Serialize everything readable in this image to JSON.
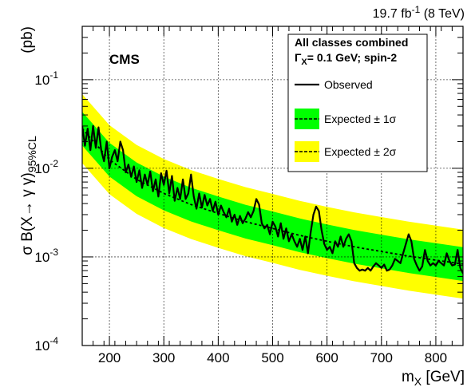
{
  "header": {
    "lumi_value": "19.7 fb",
    "lumi_exp": "-1",
    "lumi_energy": " (8 TeV)",
    "experiment": "CMS"
  },
  "legend": {
    "title_line1": "All classes combined",
    "title_line2_symbol": "Γ",
    "title_line2_sub": "X",
    "title_line2_rest": "= 0.1 GeV; spin-2",
    "observed": "Observed",
    "expected_1s": "Expected ± 1σ",
    "expected_2s": "Expected ± 2σ"
  },
  "axes": {
    "xlabel_main": "m",
    "xlabel_sub": "X",
    "xlabel_unit": " [GeV]",
    "ylabel_pre": "σ B(X→ γ γ)",
    "ylabel_sub": "95%CL",
    "ylabel_unit": "(pb)",
    "x_ticks": [
      "200",
      "300",
      "400",
      "500",
      "600",
      "700",
      "800"
    ],
    "y_ticks": [
      {
        "base": "10",
        "exp": "-4"
      },
      {
        "base": "10",
        "exp": "-3"
      },
      {
        "base": "10",
        "exp": "-2"
      },
      {
        "base": "10",
        "exp": "-1"
      }
    ]
  },
  "colors": {
    "band_1sigma": "#00ff00",
    "band_2sigma": "#ffff00",
    "observed": "#000000",
    "expected": "#000000"
  },
  "chart_data": {
    "type": "line",
    "xlabel": "m_X [GeV]",
    "ylabel": "σ B(X→ γ γ)_95%CL (pb)",
    "xlim": [
      150,
      850
    ],
    "ylim": [
      0.0001,
      0.4
    ],
    "yscale": "log",
    "grid": true,
    "legend_position": "top-right",
    "expected": {
      "x": [
        150,
        200,
        250,
        300,
        350,
        400,
        450,
        500,
        550,
        600,
        650,
        700,
        750,
        800,
        850
      ],
      "median": [
        0.028,
        0.0125,
        0.0075,
        0.0052,
        0.0039,
        0.0031,
        0.0025,
        0.0021,
        0.00175,
        0.0015,
        0.0013,
        0.00115,
        0.00102,
        0.00092,
        0.00083
      ],
      "band_1sigma_factor": 1.55,
      "band_2sigma_factor": 2.45
    },
    "series": [
      {
        "name": "Observed",
        "x": [
          150,
          155,
          160,
          165,
          170,
          175,
          180,
          185,
          190,
          195,
          200,
          205,
          210,
          215,
          220,
          225,
          230,
          235,
          240,
          245,
          250,
          255,
          260,
          265,
          270,
          275,
          280,
          285,
          290,
          295,
          300,
          305,
          310,
          315,
          320,
          325,
          330,
          335,
          340,
          345,
          350,
          355,
          360,
          365,
          370,
          375,
          380,
          385,
          390,
          395,
          400,
          405,
          410,
          415,
          420,
          425,
          430,
          435,
          440,
          445,
          450,
          455,
          460,
          465,
          470,
          475,
          480,
          485,
          490,
          495,
          500,
          505,
          510,
          515,
          520,
          525,
          530,
          535,
          540,
          545,
          550,
          555,
          560,
          565,
          570,
          575,
          580,
          585,
          590,
          595,
          600,
          605,
          610,
          615,
          620,
          625,
          630,
          635,
          640,
          645,
          650,
          655,
          660,
          665,
          670,
          675,
          680,
          685,
          690,
          695,
          700,
          705,
          710,
          715,
          720,
          725,
          730,
          735,
          740,
          745,
          750,
          755,
          760,
          765,
          770,
          775,
          780,
          785,
          790,
          795,
          800,
          805,
          810,
          815,
          820,
          825,
          830,
          835,
          840,
          845,
          850
        ],
        "values": [
          0.03,
          0.018,
          0.028,
          0.016,
          0.03,
          0.017,
          0.029,
          0.016,
          0.012,
          0.02,
          0.01,
          0.0135,
          0.016,
          0.012,
          0.02,
          0.016,
          0.009,
          0.011,
          0.008,
          0.0105,
          0.007,
          0.0095,
          0.006,
          0.0085,
          0.0065,
          0.0092,
          0.0055,
          0.0075,
          0.0048,
          0.0088,
          0.0065,
          0.0094,
          0.0052,
          0.0082,
          0.0043,
          0.006,
          0.0045,
          0.0075,
          0.0045,
          0.0052,
          0.0085,
          0.0048,
          0.0035,
          0.0052,
          0.0036,
          0.005,
          0.0038,
          0.0045,
          0.0033,
          0.0042,
          0.003,
          0.0038,
          0.0032,
          0.0028,
          0.0035,
          0.0025,
          0.003,
          0.0023,
          0.0029,
          0.0024,
          0.0027,
          0.0032,
          0.0028,
          0.0033,
          0.0045,
          0.0039,
          0.0024,
          0.0021,
          0.0023,
          0.0018,
          0.0025,
          0.0022,
          0.0017,
          0.0024,
          0.0016,
          0.0021,
          0.0015,
          0.0018,
          0.0015,
          0.0013,
          0.0016,
          0.0012,
          0.0017,
          0.0011,
          0.0019,
          0.003,
          0.0037,
          0.0033,
          0.002,
          0.0014,
          0.0012,
          0.0013,
          0.0011,
          0.0015,
          0.0013,
          0.0017,
          0.0013,
          0.0016,
          0.0018,
          0.0015,
          0.00085,
          0.00075,
          0.0007,
          0.00072,
          0.0007,
          0.00075,
          0.0007,
          0.00078,
          0.00085,
          0.0008,
          0.00075,
          0.00082,
          0.0007,
          0.00072,
          0.0008,
          0.00095,
          0.0009,
          0.00085,
          0.0011,
          0.0014,
          0.0018,
          0.0015,
          0.00095,
          0.0008,
          0.0007,
          0.00078,
          0.0012,
          0.0009,
          0.0008,
          0.00085,
          0.0008,
          0.0009,
          0.00085,
          0.0008,
          0.0011,
          0.0009,
          0.0008,
          0.00082,
          0.0012,
          0.00075,
          0.00065
        ]
      }
    ]
  }
}
